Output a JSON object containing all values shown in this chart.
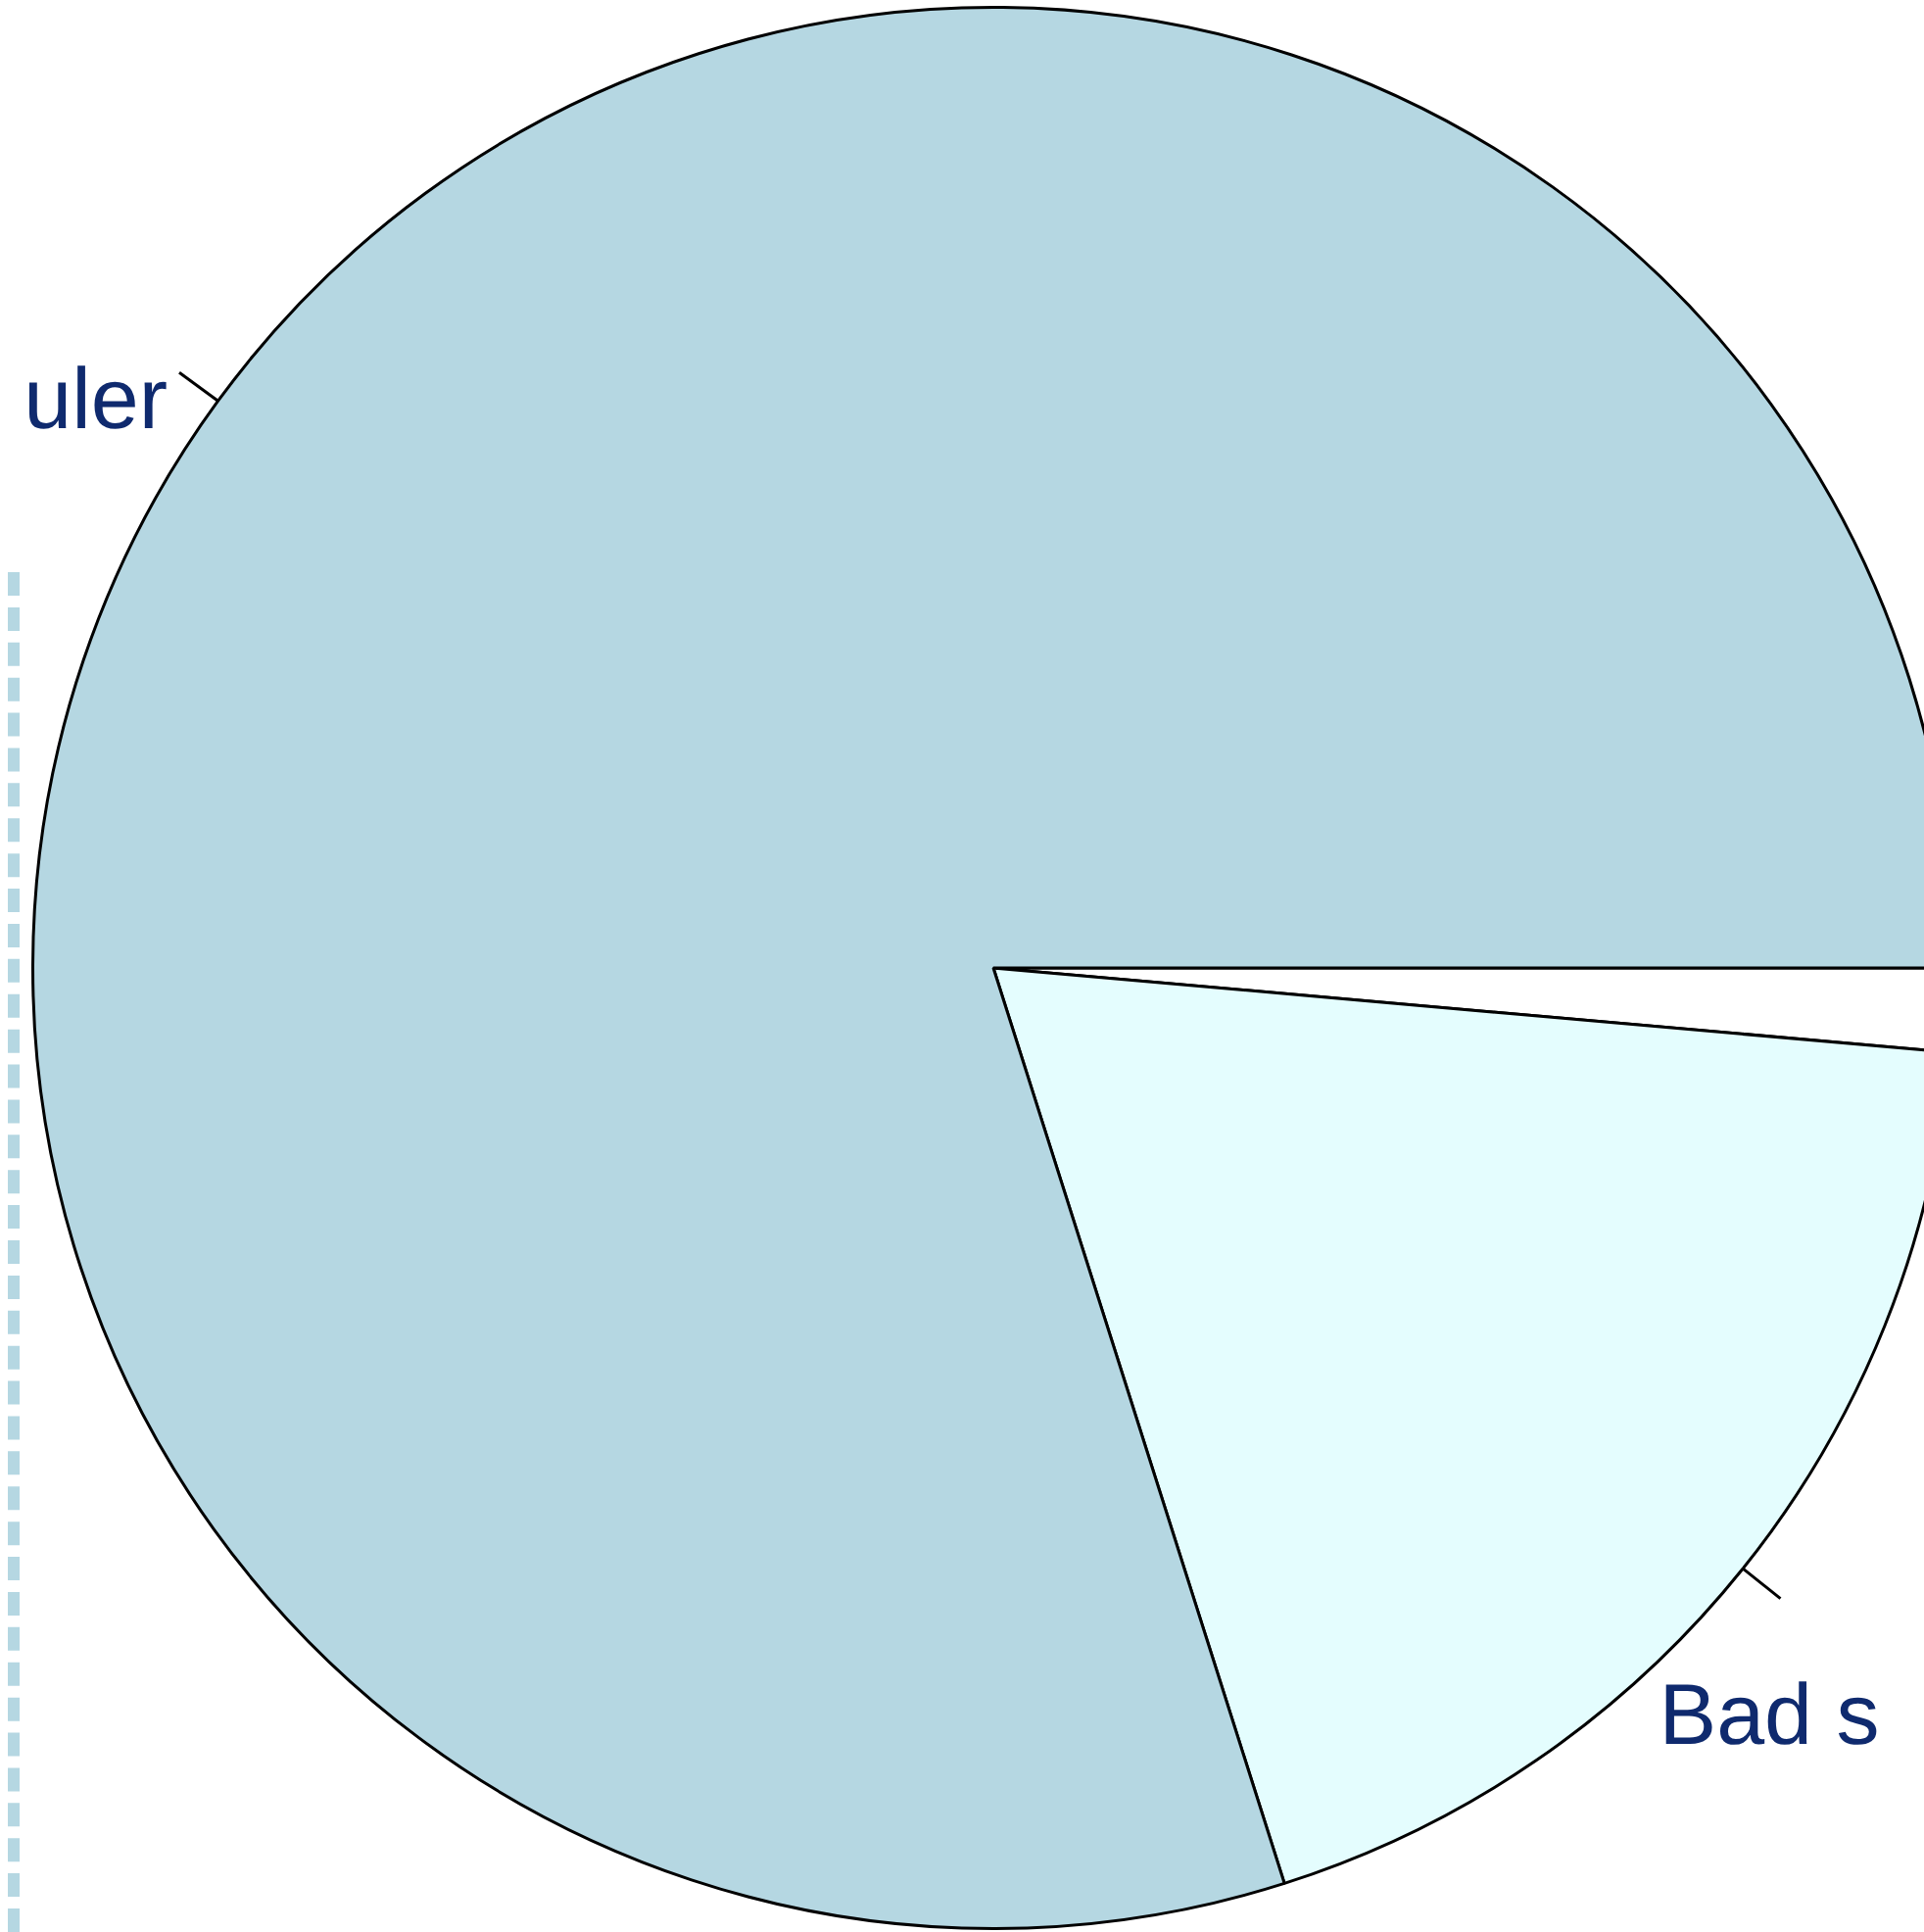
{
  "chart_data": {
    "type": "pie",
    "categories": [
      null,
      "Bad s",
      "uler"
    ],
    "values": [
      1.4,
      18.7,
      79.9
    ],
    "colors": [
      "#ffffff",
      "#e4fdfe",
      "#b5d7e2"
    ],
    "legend": false
  }
}
